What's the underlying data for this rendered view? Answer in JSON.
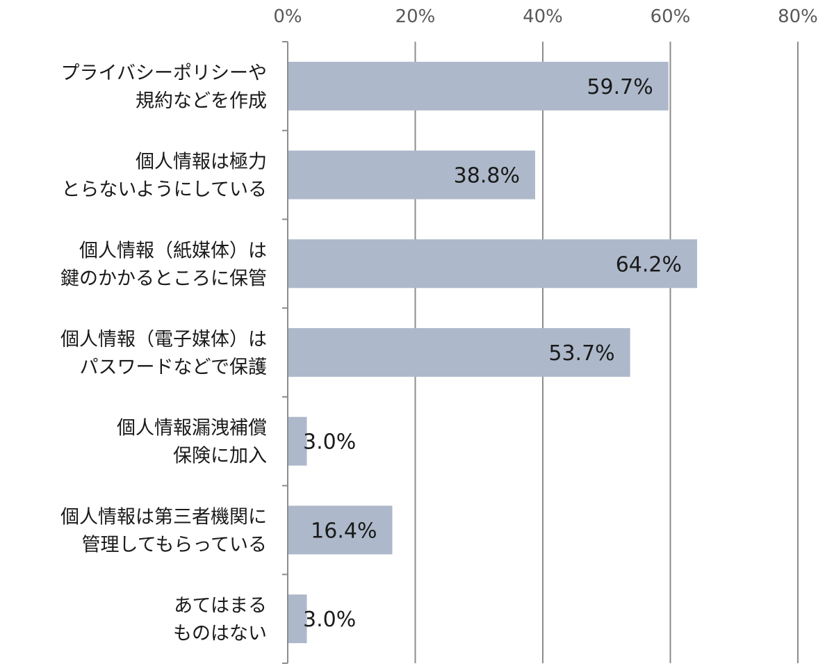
{
  "chart_data": {
    "type": "bar",
    "orientation": "horizontal",
    "categories": [
      [
        "プライバシーポリシーや",
        "規約などを作成"
      ],
      [
        "個人情報は極力",
        "とらないようにしている"
      ],
      [
        "個人情報（紙媒体）は",
        "鍵のかかるところに保管"
      ],
      [
        "個人情報（電子媒体）は",
        "パスワードなどで保護"
      ],
      [
        "個人情報漏洩補償",
        "保険に加入"
      ],
      [
        "個人情報は第三者機関に",
        "管理してもらっている"
      ],
      [
        "あてはまる",
        "ものはない"
      ]
    ],
    "values": [
      59.7,
      38.8,
      64.2,
      53.7,
      3.0,
      16.4,
      3.0
    ],
    "data_labels": [
      "59.7%",
      "38.8%",
      "64.2%",
      "53.7%",
      "3.0%",
      "16.4%",
      "3.0%"
    ],
    "xlim": [
      0,
      80
    ],
    "ticks": [
      0,
      20,
      40,
      60,
      80
    ],
    "tick_labels": [
      "0%",
      "20%",
      "40%",
      "60%",
      "80%"
    ],
    "x_axis_position": "top",
    "grid": true,
    "legend": "none",
    "title": "",
    "xlabel": "",
    "ylabel": "",
    "colors": {
      "bar": "#adb9ca",
      "grid": "#8c8c8c",
      "axis": "#8c8c8c",
      "text": "#1a1a1a",
      "tick_text": "#595959"
    }
  }
}
